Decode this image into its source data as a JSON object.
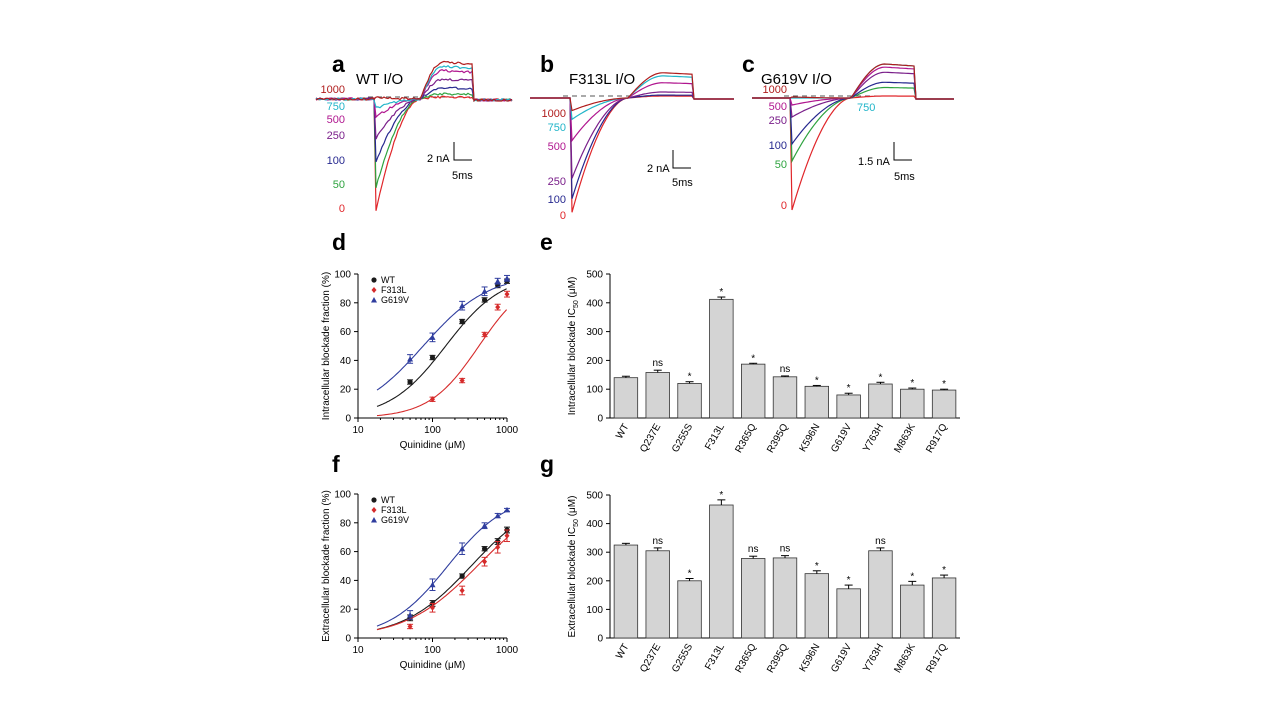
{
  "panels": {
    "a": {
      "letter": "a",
      "title": "WT I/O",
      "scale_current": "2 nA",
      "scale_time": "5ms",
      "labels": [
        "1000",
        "750",
        "500",
        "250",
        "100",
        "50",
        "0"
      ]
    },
    "b": {
      "letter": "b",
      "title": "F313L I/O",
      "scale_current": "2 nA",
      "scale_time": "5ms",
      "labels": [
        "1000",
        "750",
        "500",
        "250",
        "100",
        "0"
      ]
    },
    "c": {
      "letter": "c",
      "title": "G619V I/O",
      "scale_current": "1.5 nA",
      "scale_time": "5ms",
      "labels": [
        "1000",
        "500",
        "250",
        "100",
        "50",
        "0"
      ],
      "label_right": "750"
    },
    "d": {
      "letter": "d"
    },
    "e": {
      "letter": "e"
    },
    "f": {
      "letter": "f"
    },
    "g": {
      "letter": "g"
    }
  },
  "colors": {
    "WT": "#1a1a1a",
    "F313L": "#d62b2b",
    "G619V": "#2f3d9e",
    "bar": "#d4d4d4",
    "trace_1000": "#b01c1c",
    "trace_750": "#22b5c9",
    "trace_500": "#b0168f",
    "trace_250": "#7a1f8a",
    "trace_100": "#26288f",
    "trace_50": "#2ea33f",
    "trace_0": "#e0262a"
  },
  "chart_data": [
    {
      "id": "d",
      "type": "scatter",
      "xlabel": "Quinidine (μM)",
      "ylabel": "Intracellular blockade fraction (%)",
      "xscale": "log",
      "xlim": [
        10,
        1000
      ],
      "ylim": [
        0,
        100
      ],
      "xticks": [
        "10",
        "100",
        "1000"
      ],
      "yticks": [
        "0",
        "20",
        "40",
        "60",
        "80",
        "100"
      ],
      "legend": "top-left",
      "series": [
        {
          "name": "WT",
          "x": [
            50,
            100,
            250,
            500,
            750,
            1000
          ],
          "y": [
            25,
            42,
            67,
            82,
            92,
            95
          ],
          "err": [
            1.5,
            1.5,
            1.5,
            1.5,
            1.5,
            1.5
          ]
        },
        {
          "name": "F313L",
          "x": [
            100,
            250,
            500,
            750,
            1000
          ],
          "y": [
            13,
            26,
            58,
            77,
            86
          ],
          "err": [
            1.5,
            1.5,
            1.5,
            2,
            2
          ]
        },
        {
          "name": "G619V",
          "x": [
            50,
            100,
            250,
            500,
            750,
            1000
          ],
          "y": [
            41,
            56,
            78,
            88,
            95,
            97
          ],
          "err": [
            3,
            3,
            3,
            3,
            2,
            2
          ]
        }
      ]
    },
    {
      "id": "e",
      "type": "bar",
      "ylabel": "Intracellular blockade IC50 (μM)",
      "ylim": [
        0,
        500
      ],
      "yticks": [
        "0",
        "100",
        "200",
        "300",
        "400",
        "500"
      ],
      "categories": [
        "WT",
        "Q237E",
        "G255S",
        "F313L",
        "R365Q",
        "R395Q",
        "K596N",
        "G619V",
        "Y763H",
        "M863K",
        "R917Q"
      ],
      "values": [
        140,
        158,
        120,
        412,
        187,
        143,
        110,
        80,
        118,
        100,
        97
      ],
      "err": [
        5,
        8,
        6,
        8,
        3,
        3,
        3,
        6,
        6,
        4,
        3
      ],
      "significance": [
        "",
        "ns",
        "*",
        "*",
        "*",
        "ns",
        "*",
        "*",
        "*",
        "*",
        "*"
      ]
    },
    {
      "id": "f",
      "type": "scatter",
      "xlabel": "Quinidine (μM)",
      "ylabel": "Extracellular blockade fraction (%)",
      "xscale": "log",
      "xlim": [
        10,
        1000
      ],
      "ylim": [
        0,
        100
      ],
      "xticks": [
        "10",
        "100",
        "1000"
      ],
      "yticks": [
        "0",
        "20",
        "40",
        "60",
        "80",
        "100"
      ],
      "legend": "top-left",
      "series": [
        {
          "name": "WT",
          "x": [
            50,
            100,
            250,
            500,
            750,
            1000
          ],
          "y": [
            14,
            24,
            43,
            62,
            67,
            75
          ],
          "err": [
            2,
            2,
            1.5,
            1.5,
            2,
            2
          ]
        },
        {
          "name": "F313L",
          "x": [
            50,
            100,
            250,
            500,
            750,
            1000
          ],
          "y": [
            8,
            21,
            33,
            53,
            63,
            71
          ],
          "err": [
            1.5,
            3,
            3,
            3,
            4,
            4
          ]
        },
        {
          "name": "G619V",
          "x": [
            50,
            100,
            250,
            500,
            750,
            1000
          ],
          "y": [
            16,
            37,
            62,
            78,
            85,
            89
          ],
          "err": [
            3,
            4,
            4,
            2,
            1.5,
            1
          ]
        }
      ]
    },
    {
      "id": "g",
      "type": "bar",
      "ylabel": "Extracellular blockade IC50 (μM)",
      "ylim": [
        0,
        500
      ],
      "yticks": [
        "0",
        "100",
        "200",
        "300",
        "400",
        "500"
      ],
      "categories": [
        "WT",
        "Q237E",
        "G255S",
        "F313L",
        "R365Q",
        "R395Q",
        "K596N",
        "G619V",
        "Y763H",
        "M863K",
        "R917Q"
      ],
      "values": [
        325,
        305,
        200,
        465,
        278,
        280,
        225,
        172,
        305,
        185,
        210
      ],
      "err": [
        6,
        10,
        8,
        18,
        8,
        8,
        10,
        13,
        10,
        13,
        10
      ],
      "significance": [
        "",
        "ns",
        "*",
        "*",
        "ns",
        "ns",
        "*",
        "*",
        "ns",
        "*",
        "*"
      ]
    }
  ]
}
